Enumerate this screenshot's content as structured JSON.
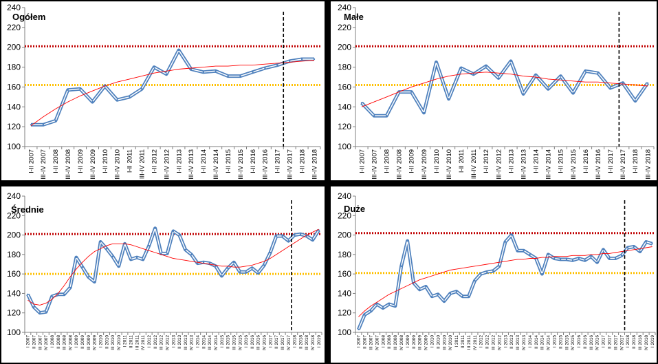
{
  "colors": {
    "series_outer": "#4f81bd",
    "series_inner": "#ffffff",
    "trend": "#ff0000",
    "upper_ref": "#c00000",
    "lower_ref": "#ffc000",
    "marker_line": "#000000",
    "axis": "#7f7f7f"
  },
  "chart_data": [
    {
      "type": "line",
      "title": "Ogółem",
      "ylim": [
        100,
        240
      ],
      "yticks": [
        100,
        120,
        140,
        160,
        180,
        200,
        220,
        240
      ],
      "grid": false,
      "categories": [
        "I-II 2007",
        "III-IV 2007",
        "I-II 2008",
        "III-IV 2008",
        "I-II 2009",
        "III-IV 2009",
        "I-II 2010",
        "III-IV 2010",
        "I-II 2011",
        "III-IV 2011",
        "I-II 2012",
        "III-IV 2012",
        "I-II 2013",
        "III-IV 2013",
        "I-II 2014",
        "III-IV 2014",
        "I-II 2015",
        "III-IV 2015",
        "I-II 2016",
        "III-IV 2016",
        "I-II 2017",
        "III-IV 2017",
        "I-II 2018",
        "III-IV 2018"
      ],
      "values": [
        122,
        122,
        126,
        157,
        158,
        145,
        161,
        147,
        150,
        158,
        180,
        173,
        197,
        178,
        175,
        176,
        171,
        171,
        175,
        179,
        182,
        186,
        188,
        188
      ],
      "trend": [
        121,
        130,
        138,
        145,
        151,
        156,
        161,
        165,
        168,
        171,
        174,
        176,
        178,
        179,
        180,
        181,
        181,
        182,
        182,
        183,
        184,
        185,
        186,
        187
      ],
      "upper_ref": 201,
      "lower_ref": 162,
      "marker_after_index": 20.5
    },
    {
      "type": "line",
      "title": "Małe",
      "ylim": [
        100,
        240
      ],
      "yticks": [
        100,
        120,
        140,
        160,
        180,
        200,
        220,
        240
      ],
      "grid": false,
      "categories": [
        "I-II 2007",
        "III-IV 2007",
        "I-II 2008",
        "III-IV 2008",
        "I-II 2009",
        "III-IV 2009",
        "I-II 2010",
        "III-IV 2010",
        "I-II 2011",
        "III-IV 2011",
        "I-II 2012",
        "III-IV 2012",
        "I-II 2013",
        "III-IV 2013",
        "I-II 2014",
        "III-IV 2014",
        "I-II 2015",
        "III-IV 2015",
        "I-II 2016",
        "III-IV 2016",
        "I-II 2017",
        "III-IV 2017",
        "I-II 2018",
        "III-IV 2018"
      ],
      "values": [
        144,
        131,
        131,
        155,
        155,
        134,
        185,
        148,
        179,
        173,
        181,
        169,
        186,
        153,
        172,
        158,
        171,
        154,
        176,
        174,
        159,
        164,
        146,
        164
      ],
      "trend": [
        140,
        145,
        150,
        155,
        160,
        164,
        168,
        171,
        173,
        174,
        175,
        174,
        173,
        171,
        170,
        168,
        167,
        166,
        165,
        165,
        164,
        163,
        162,
        161
      ],
      "upper_ref": 201,
      "lower_ref": 162,
      "marker_after_index": 20.7
    },
    {
      "type": "line",
      "title": "Średnie",
      "ylim": [
        100,
        240
      ],
      "yticks": [
        100,
        120,
        140,
        160,
        180,
        200,
        220,
        240
      ],
      "grid": false,
      "categories": [
        "I 2007",
        "II 2007",
        "III 2007",
        "IV 2007",
        "I 2008",
        "II 2008",
        "III 2008",
        "IV 2008",
        "I 2009",
        "II 2009",
        "III 2009",
        "IV 2009",
        "I 2010",
        "II 2010",
        "III 2010",
        "IV 2010",
        "I 2011",
        "II 2011",
        "III 2011",
        "IV 2011",
        "I 2012",
        "II 2012",
        "III 2012",
        "IV 2012",
        "I 2013",
        "II 2013",
        "III 2013",
        "IV 2013",
        "I 2014",
        "II 2014",
        "III 2014",
        "IV 2014",
        "I 2015",
        "II 2015",
        "III 2015",
        "IV 2015",
        "I 2016",
        "II 2016",
        "III 2016",
        "IV 2016",
        "I 2017",
        "II 2017",
        "III 2017",
        "IV 2017",
        "I 2018",
        "II 2018",
        "III 2018",
        "IV 2018",
        "I 2019"
      ],
      "values": [
        139,
        126,
        120,
        121,
        137,
        139,
        139,
        146,
        177,
        167,
        157,
        152,
        193,
        186,
        178,
        168,
        191,
        175,
        177,
        175,
        189,
        207,
        181,
        181,
        204,
        200,
        185,
        180,
        171,
        172,
        171,
        168,
        158,
        166,
        172,
        162,
        162,
        166,
        161,
        169,
        182,
        199,
        199,
        194,
        200,
        201,
        199,
        195,
        205
      ],
      "trend": [
        133,
        129,
        128,
        130,
        134,
        140,
        148,
        157,
        165,
        172,
        178,
        183,
        186,
        189,
        191,
        191,
        191,
        190,
        188,
        186,
        184,
        182,
        180,
        178,
        176,
        175,
        174,
        173,
        172,
        171,
        170,
        169,
        168,
        168,
        167,
        167,
        168,
        169,
        171,
        173,
        176,
        180,
        184,
        188,
        192,
        196,
        200,
        203,
        206
      ],
      "upper_ref": 201,
      "lower_ref": 160,
      "marker_after_index": 43.5
    },
    {
      "type": "line",
      "title": "Duże",
      "ylim": [
        100,
        240
      ],
      "yticks": [
        100,
        120,
        140,
        160,
        180,
        200,
        220,
        240
      ],
      "grid": false,
      "categories": [
        "I 2007",
        "II 2007",
        "III 2007",
        "IV 2007",
        "I 2008",
        "II 2008",
        "III 2008",
        "IV 2008",
        "I 2009",
        "II 2009",
        "III 2009",
        "IV 2009",
        "I 2010",
        "II 2010",
        "III 2010",
        "IV 2010",
        "I 2011",
        "II 2011",
        "III 2011",
        "IV 2011",
        "I 2012",
        "II 2012",
        "III 2012",
        "IV 2012",
        "I 2013",
        "II 2013",
        "III 2013",
        "IV 2013",
        "I 2014",
        "II 2014",
        "III 2014",
        "IV 2014",
        "I 2015",
        "II 2015",
        "III 2015",
        "IV 2015",
        "I 2016",
        "II 2016",
        "III 2016",
        "IV 2016",
        "I 2017",
        "II 2017",
        "III 2017",
        "IV 2017",
        "I 2018",
        "II 2018",
        "III 2018",
        "IV 2018",
        "I 2019"
      ],
      "values": [
        103,
        118,
        122,
        129,
        125,
        129,
        127,
        168,
        194,
        151,
        144,
        147,
        137,
        139,
        132,
        140,
        142,
        137,
        137,
        153,
        160,
        162,
        163,
        168,
        193,
        200,
        184,
        184,
        180,
        176,
        160,
        180,
        176,
        175,
        175,
        174,
        176,
        174,
        178,
        172,
        185,
        176,
        176,
        179,
        187,
        188,
        183,
        193,
        191
      ],
      "trend": [
        116,
        122,
        127,
        131,
        135,
        139,
        142,
        145,
        148,
        151,
        154,
        156,
        158,
        160,
        162,
        164,
        165,
        166,
        167,
        168,
        169,
        170,
        171,
        172,
        173,
        174,
        175,
        175,
        176,
        176,
        177,
        177,
        178,
        178,
        178,
        179,
        179,
        179,
        180,
        180,
        181,
        181,
        182,
        183,
        184,
        185,
        186,
        187,
        188
      ],
      "upper_ref": 202,
      "lower_ref": 161,
      "marker_after_index": 43.5
    }
  ]
}
